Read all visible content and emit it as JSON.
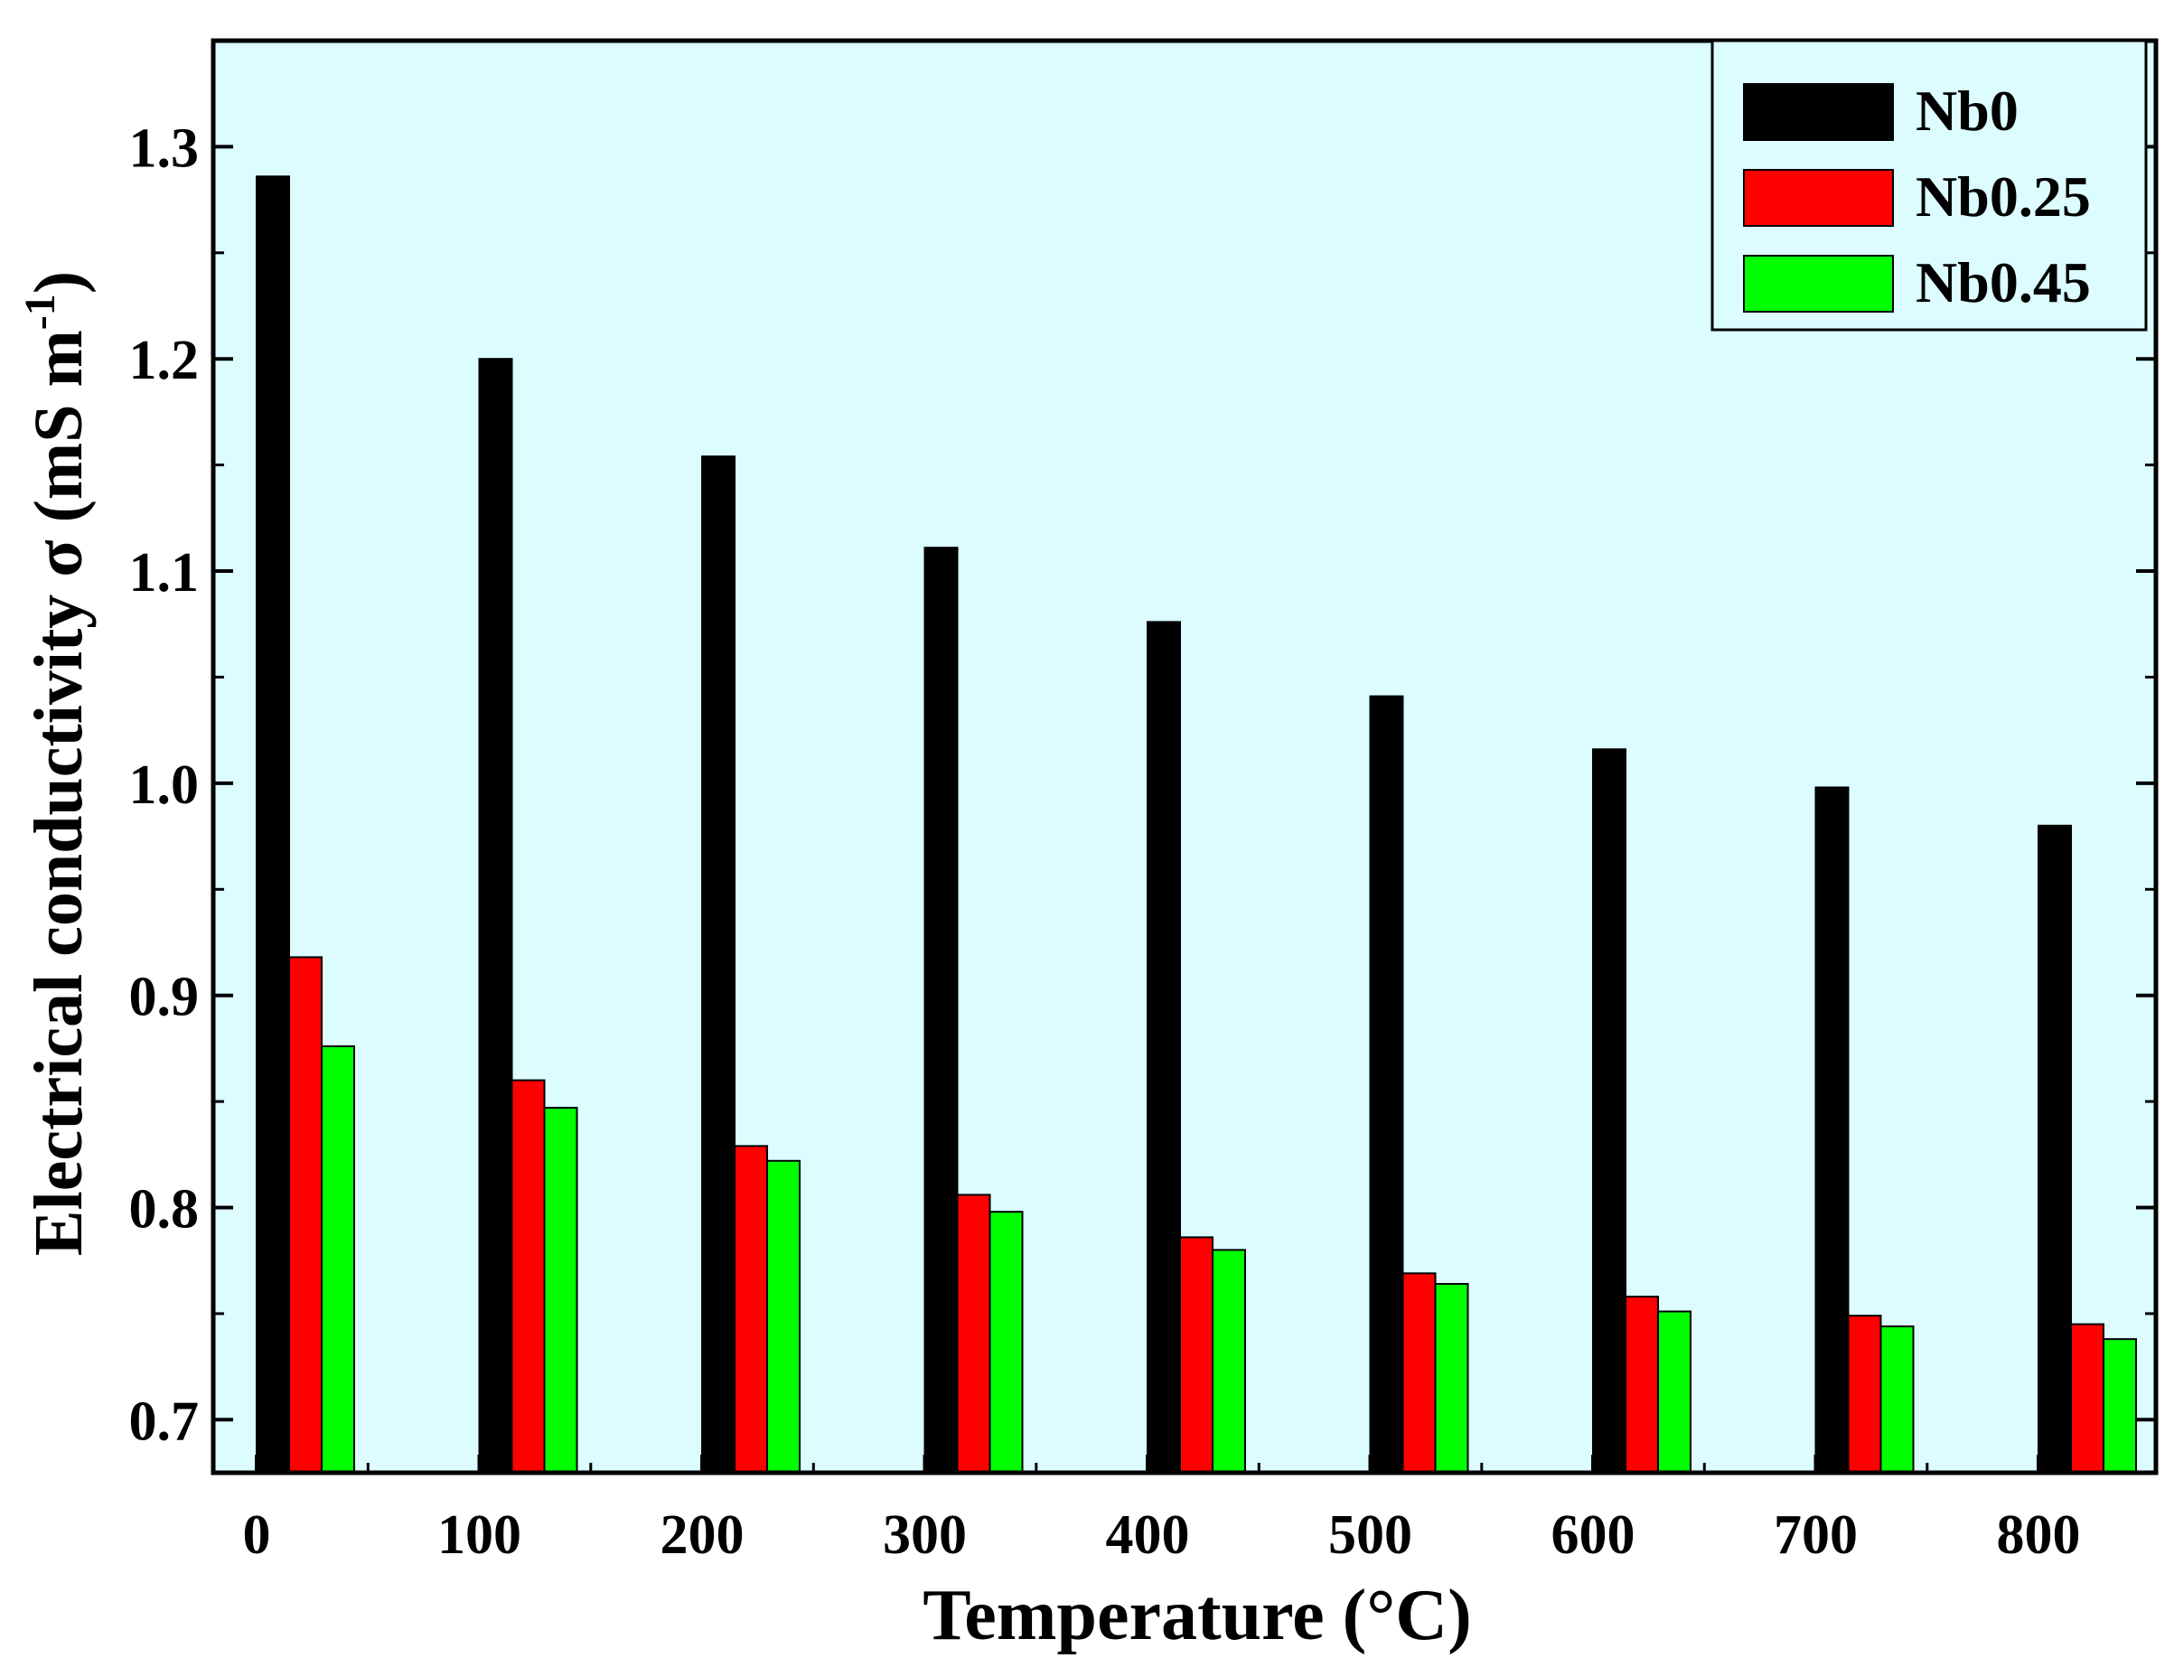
{
  "chart_data": {
    "type": "bar",
    "title": "",
    "xlabel": "Temperature (°C)",
    "ylabel": "Electrical conductivity σ (mS m",
    "ylabel_superscript": "-1",
    "ylabel_suffix": ")",
    "categories": [
      "0",
      "100",
      "200",
      "300",
      "400",
      "500",
      "600",
      "700",
      "800"
    ],
    "series": [
      {
        "name": "Nb0",
        "color": "#000000",
        "values": [
          1.286,
          1.2,
          1.154,
          1.111,
          1.076,
          1.041,
          1.016,
          0.998,
          0.98
        ]
      },
      {
        "name": "Nb0.25",
        "color": "#ff0000",
        "values": [
          0.918,
          0.86,
          0.829,
          0.806,
          0.786,
          0.769,
          0.758,
          0.749,
          0.745
        ]
      },
      {
        "name": "Nb0.45",
        "color": "#00ff00",
        "values": [
          0.876,
          0.847,
          0.822,
          0.798,
          0.78,
          0.764,
          0.751,
          0.744,
          0.738
        ]
      }
    ],
    "ylim": [
      0.675,
      1.35
    ],
    "yticks": [
      "0.7",
      "0.8",
      "0.9",
      "1.0",
      "1.1",
      "1.2",
      "1.3"
    ],
    "ytick_values": [
      0.7,
      0.8,
      0.9,
      1.0,
      1.1,
      1.2,
      1.3
    ],
    "legend_position": "top-right",
    "grid": false,
    "plot_background": "#dcfcff"
  }
}
